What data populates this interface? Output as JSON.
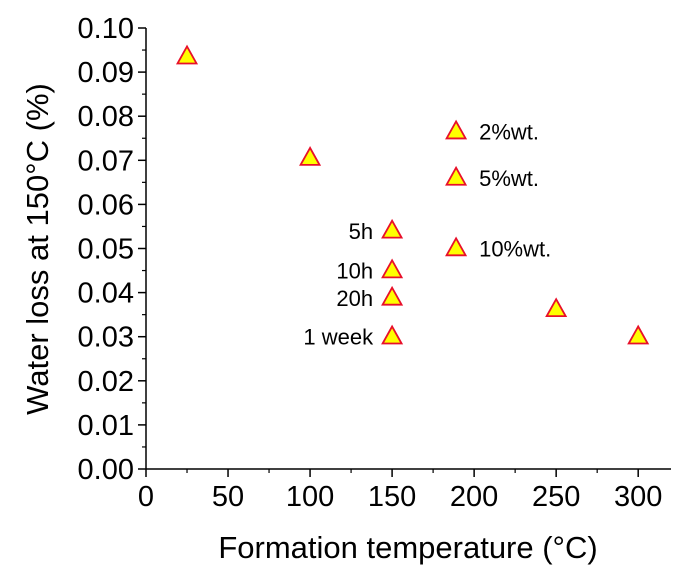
{
  "chart_data": {
    "type": "scatter",
    "title": "",
    "xlabel": "Formation temperature (°C)",
    "ylabel": "Water loss at 150°C (%)",
    "xlim": [
      0,
      320
    ],
    "ylim": [
      0.0,
      0.1
    ],
    "x_ticks": [
      0,
      50,
      100,
      150,
      200,
      250,
      300
    ],
    "x_tick_labels": [
      "0",
      "50",
      "100",
      "150",
      "200",
      "250",
      "300"
    ],
    "y_ticks": [
      0.0,
      0.01,
      0.02,
      0.03,
      0.04,
      0.05,
      0.06,
      0.07,
      0.08,
      0.09,
      0.1
    ],
    "y_tick_labels": [
      "0.00",
      "0.01",
      "0.02",
      "0.03",
      "0.04",
      "0.05",
      "0.06",
      "0.07",
      "0.08",
      "0.09",
      "0.10"
    ],
    "grid": false,
    "marker": "triangle-up",
    "marker_fill": "#ffff00",
    "marker_edge": "#e8102a",
    "series": [
      {
        "points": [
          {
            "x": 25,
            "y": 0.0935,
            "label": ""
          },
          {
            "x": 100,
            "y": 0.0705,
            "label": ""
          },
          {
            "x": 150,
            "y": 0.054,
            "label": "5h",
            "label_side": "left"
          },
          {
            "x": 150,
            "y": 0.045,
            "label": "10h",
            "label_side": "left"
          },
          {
            "x": 150,
            "y": 0.0388,
            "label": "20h",
            "label_side": "left"
          },
          {
            "x": 150,
            "y": 0.03,
            "label": "1 week",
            "label_side": "left"
          },
          {
            "x": 189,
            "y": 0.0765,
            "label": "2%wt.",
            "label_side": "right"
          },
          {
            "x": 189,
            "y": 0.066,
            "label": "5%wt.",
            "label_side": "right"
          },
          {
            "x": 189,
            "y": 0.05,
            "label": "10%wt.",
            "label_side": "right"
          },
          {
            "x": 250,
            "y": 0.0362,
            "label": ""
          },
          {
            "x": 300,
            "y": 0.03,
            "label": ""
          }
        ]
      }
    ]
  }
}
